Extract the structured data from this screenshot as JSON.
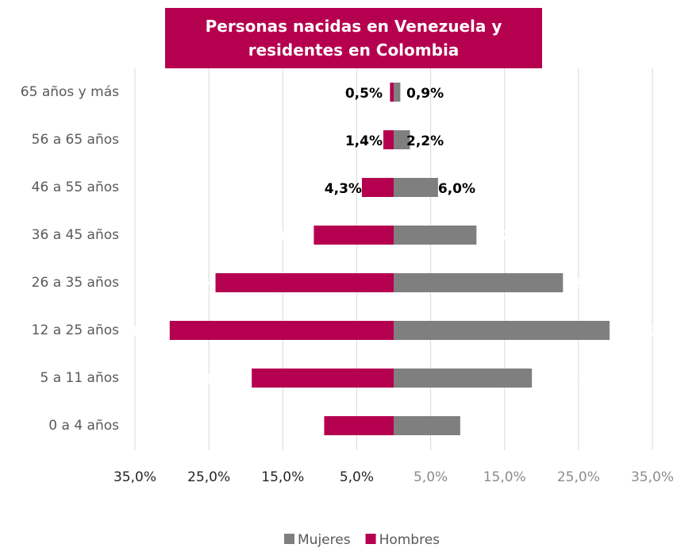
{
  "chart_data": {
    "type": "pyramid",
    "title": "Personas nacidas en Venezuela y residentes en Colombia",
    "categories": [
      "65 años y más",
      "56 a 65 años",
      "46 a 55 años",
      "36 a 45 años",
      "26 a 35 años",
      "12 a 25 años",
      "5 a 11 años",
      "0 a 4 años"
    ],
    "series": [
      {
        "name": "Mujeres",
        "color": "#7f7f7f",
        "side": "right",
        "values": [
          0.9,
          2.2,
          6.0,
          11.2,
          22.9,
          29.2,
          18.7,
          9.0
        ],
        "value_labels": [
          "0,9%",
          "2,2%",
          "6,0%",
          "11,2%",
          "22,9%",
          "29,2%",
          "18,7%",
          "9,0%"
        ]
      },
      {
        "name": "Hombres",
        "color": "#b5004f",
        "side": "left",
        "values": [
          0.5,
          1.4,
          4.3,
          10.8,
          24.1,
          30.3,
          19.2,
          9.4
        ],
        "value_labels": [
          "0,5%",
          "1,4%",
          "4,3%",
          "10,8%",
          "24,1%",
          "30,3%",
          "19,2%",
          "9,4%"
        ]
      }
    ],
    "xlim": [
      0,
      35
    ],
    "xticks": [
      {
        "value": 5,
        "label": "5,0%"
      },
      {
        "value": 15,
        "label": "15,0%"
      },
      {
        "value": 25,
        "label": "25,0%"
      },
      {
        "value": 35,
        "label": "35,0%"
      }
    ],
    "grid": true,
    "legend": "bottom"
  }
}
